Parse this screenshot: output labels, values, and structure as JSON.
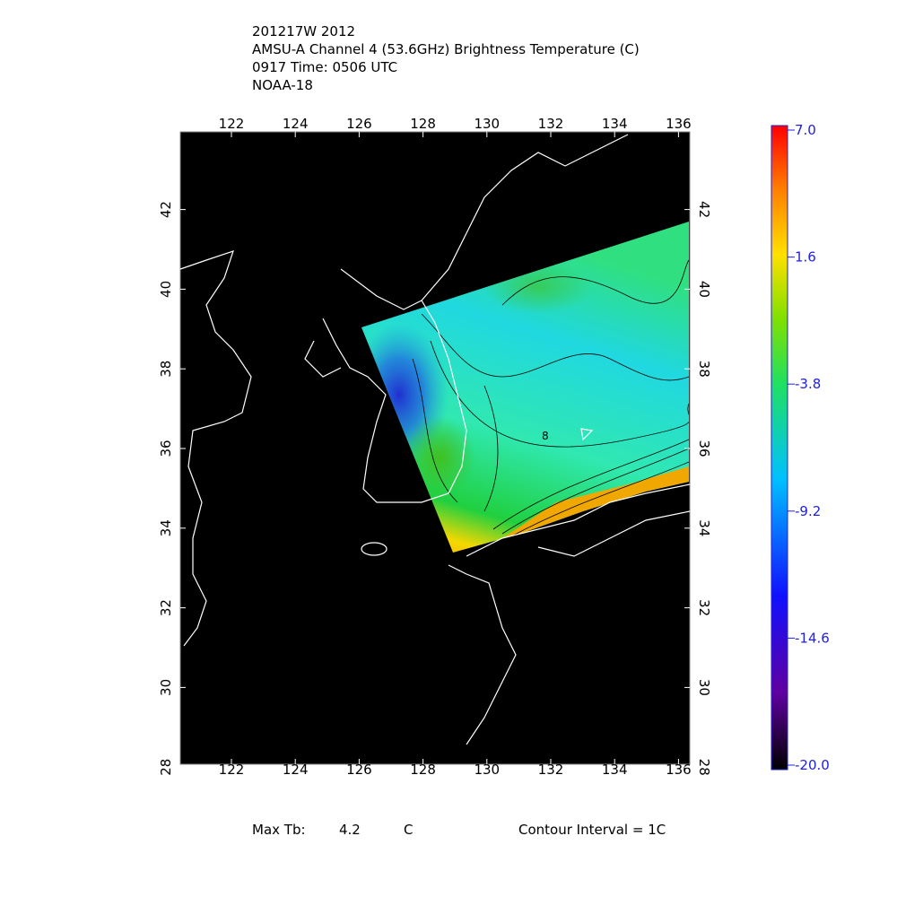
{
  "header": {
    "lines": [
      "201217W 2012",
      "AMSU-A Channel 4 (53.6GHz) Brightness Temperature (C)",
      "0917 Time: 0506 UTC",
      "NOAA-18"
    ]
  },
  "map": {
    "lon_ticks": [
      122,
      124,
      126,
      128,
      130,
      132,
      134,
      136
    ],
    "lat_ticks": [
      42,
      40,
      38,
      36,
      34,
      32,
      30,
      28
    ],
    "contour_label": "8"
  },
  "colorbar": {
    "ticks": [
      {
        "value": 7,
        "label": "7.0"
      },
      1.6,
      -3.8,
      -9.2,
      -14.6,
      {
        "value": -20,
        "label": "-20.0"
      }
    ]
  },
  "footer": {
    "max_tb_label": "Max Tb:",
    "max_tb_value": "4.2",
    "max_tb_unit": "C",
    "contour_interval": "Contour Interval = 1C"
  }
}
